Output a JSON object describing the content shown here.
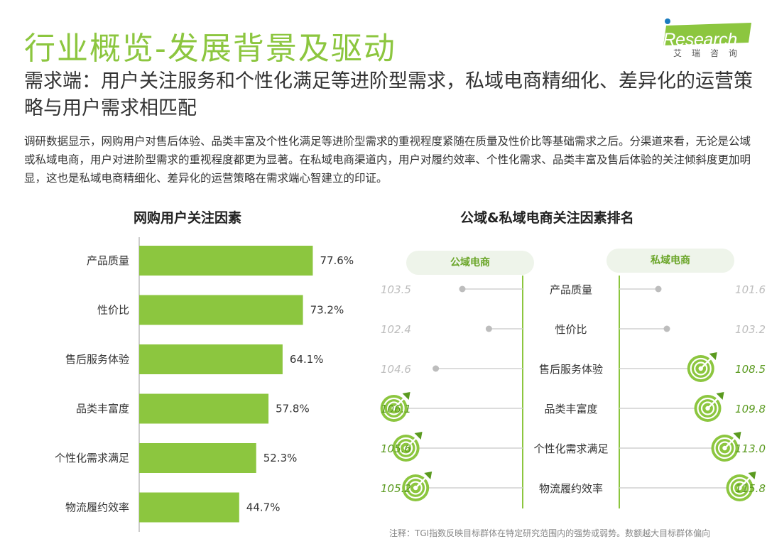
{
  "page": {
    "title": "行业概览-发展背景及驱动",
    "subtitle": "需求端：用户关注服务和个性化满足等进阶型需求，私域电商精细化、差异化的运营策略与用户需求相匹配",
    "description": "调研数据显示，网购用户对售后体验、品类丰富及个性化满足等进阶型需求的重视程度紧随在质量及性价比等基础需求之后。分渠道来看，无论是公域或私域电商，用户对进阶型需求的重视程度都更为显著。在私域电商渠道内，用户对履约效率、个性化需求、品类丰富及售后体验的关注倾斜度更加明显，这也是私域电商精细化、差异化的运营策略在需求端心智建立的印证。",
    "logo_text": "iResearch",
    "logo_cn": "艾瑞咨询",
    "footnote": "注释：TGI指数反映目标群体在特定研究范围内的强势或弱势。数额越大目标群体偏向"
  },
  "colors": {
    "accent": "#8cc63f",
    "accent_dark": "#5a9a1f",
    "muted": "#bdbdbd",
    "pill_bg": "#eef4ea"
  },
  "chart_data": [
    {
      "type": "bar",
      "title": "网购用户关注因素",
      "categories": [
        "产品质量",
        "性价比",
        "售后服务体验",
        "品类丰富度",
        "个性化需求满足",
        "物流履约效率"
      ],
      "values": [
        77.6,
        73.2,
        64.1,
        57.8,
        52.3,
        44.7
      ],
      "value_labels": [
        "77.6%",
        "73.2%",
        "64.1%",
        "57.8%",
        "52.3%",
        "44.7%"
      ],
      "orientation": "horizontal",
      "xlim": [
        0,
        100
      ]
    },
    {
      "type": "table",
      "title": "公域&私域电商关注因素排名",
      "channels": [
        "公域电商",
        "私域电商"
      ],
      "categories": [
        "产品质量",
        "性价比",
        "售后服务体验",
        "品类丰富度",
        "个性化需求满足",
        "物流履约效率"
      ],
      "series": [
        {
          "name": "公域电商",
          "values": [
            103.5,
            102.4,
            104.6,
            106.1,
            105.6,
            105.2
          ],
          "labels": [
            "103.5",
            "102.4",
            "104.6",
            "106.1",
            "105.6",
            "105.2"
          ],
          "highlighted": [
            false,
            false,
            false,
            true,
            true,
            true
          ]
        },
        {
          "name": "私域电商",
          "values": [
            101.6,
            103.2,
            108.5,
            109.8,
            113.0,
            115.8
          ],
          "labels": [
            "101.6",
            "103.2",
            "108.5",
            "109.8",
            "113.0",
            "115.8"
          ],
          "highlighted": [
            false,
            false,
            true,
            true,
            true,
            true
          ]
        }
      ]
    }
  ]
}
